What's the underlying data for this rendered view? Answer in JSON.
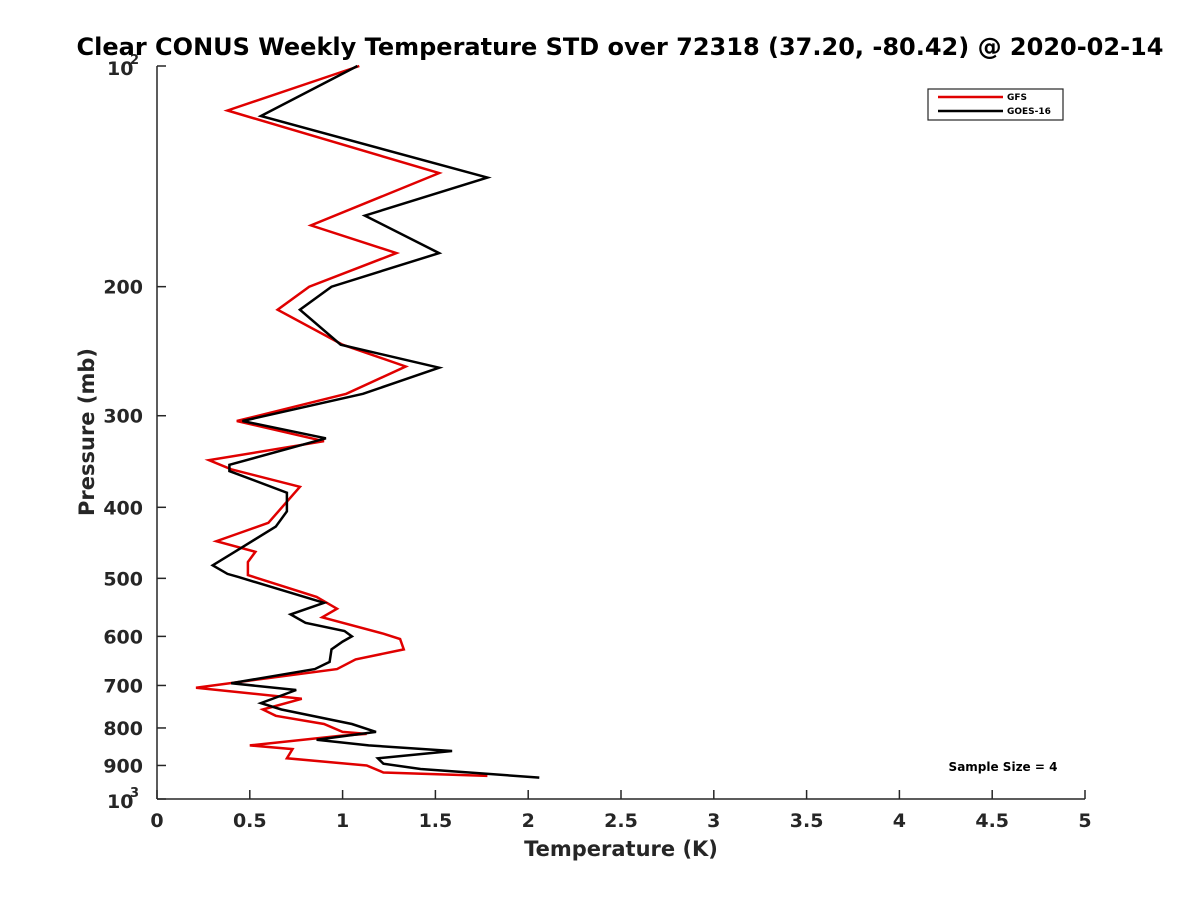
{
  "chart_data": {
    "type": "line",
    "title": "Clear CONUS Weekly Temperature STD over 72318 (37.20, -80.42) @ 2020-02-14",
    "xlabel": "Temperature (K)",
    "ylabel": "Pressure (mb)",
    "xlim": [
      0,
      5
    ],
    "ylim": [
      100,
      1000
    ],
    "y_scale": "log",
    "y_reversed": true,
    "grid": false,
    "legend_position": "top-right",
    "x_ticks": [
      "0",
      "0.5",
      "1",
      "1.5",
      "2",
      "2.5",
      "3",
      "3.5",
      "4",
      "4.5",
      "5"
    ],
    "y_ticks": [
      {
        "value": 100,
        "base": "10",
        "exp": "2"
      },
      {
        "value": 200,
        "label": "200"
      },
      {
        "value": 300,
        "label": "300"
      },
      {
        "value": 400,
        "label": "400"
      },
      {
        "value": 500,
        "label": "500"
      },
      {
        "value": 600,
        "label": "600"
      },
      {
        "value": 700,
        "label": "700"
      },
      {
        "value": 800,
        "label": "800"
      },
      {
        "value": 900,
        "label": "900"
      },
      {
        "value": 1000,
        "base": "10",
        "exp": "3"
      }
    ],
    "annotation": "Sample Size = 4",
    "series": [
      {
        "name": "GFS",
        "color": "#e00000",
        "points": [
          [
            1.09,
            100
          ],
          [
            0.38,
            115
          ],
          [
            1.52,
            140
          ],
          [
            0.83,
            165
          ],
          [
            1.29,
            180
          ],
          [
            0.82,
            200
          ],
          [
            0.65,
            215
          ],
          [
            1.0,
            240
          ],
          [
            1.34,
            257
          ],
          [
            1.02,
            280
          ],
          [
            0.43,
            305
          ],
          [
            0.9,
            325
          ],
          [
            0.28,
            345
          ],
          [
            0.4,
            355
          ],
          [
            0.77,
            375
          ],
          [
            0.6,
            420
          ],
          [
            0.43,
            435
          ],
          [
            0.32,
            445
          ],
          [
            0.53,
            460
          ],
          [
            0.49,
            475
          ],
          [
            0.49,
            495
          ],
          [
            0.86,
            530
          ],
          [
            0.97,
            550
          ],
          [
            0.89,
            565
          ],
          [
            1.22,
            595
          ],
          [
            1.31,
            605
          ],
          [
            1.33,
            625
          ],
          [
            1.07,
            645
          ],
          [
            0.97,
            665
          ],
          [
            0.21,
            705
          ],
          [
            0.78,
            730
          ],
          [
            0.57,
            755
          ],
          [
            0.64,
            770
          ],
          [
            0.9,
            790
          ],
          [
            1.0,
            810
          ],
          [
            1.13,
            815
          ],
          [
            0.99,
            820
          ],
          [
            0.5,
            845
          ],
          [
            0.73,
            855
          ],
          [
            0.7,
            880
          ],
          [
            1.13,
            900
          ],
          [
            1.22,
            920
          ],
          [
            1.78,
            930
          ]
        ]
      },
      {
        "name": "GOES-16",
        "color": "#000000",
        "points": [
          [
            1.08,
            100
          ],
          [
            0.56,
            117
          ],
          [
            1.78,
            142
          ],
          [
            1.12,
            160
          ],
          [
            1.52,
            180
          ],
          [
            0.94,
            200
          ],
          [
            0.77,
            215
          ],
          [
            0.99,
            240
          ],
          [
            1.52,
            258
          ],
          [
            1.11,
            280
          ],
          [
            0.46,
            305
          ],
          [
            0.91,
            322
          ],
          [
            0.39,
            350
          ],
          [
            0.39,
            357
          ],
          [
            0.7,
            382
          ],
          [
            0.7,
            405
          ],
          [
            0.64,
            425
          ],
          [
            0.45,
            455
          ],
          [
            0.3,
            480
          ],
          [
            0.38,
            493
          ],
          [
            0.44,
            498
          ],
          [
            0.9,
            540
          ],
          [
            0.72,
            560
          ],
          [
            0.8,
            575
          ],
          [
            1.01,
            590
          ],
          [
            1.05,
            600
          ],
          [
            1.0,
            610
          ],
          [
            0.94,
            625
          ],
          [
            0.93,
            650
          ],
          [
            0.85,
            665
          ],
          [
            0.4,
            695
          ],
          [
            0.75,
            710
          ],
          [
            0.56,
            740
          ],
          [
            0.67,
            755
          ],
          [
            1.05,
            790
          ],
          [
            1.18,
            810
          ],
          [
            0.86,
            830
          ],
          [
            1.14,
            845
          ],
          [
            1.59,
            860
          ],
          [
            1.19,
            880
          ],
          [
            1.22,
            895
          ],
          [
            1.42,
            910
          ],
          [
            2.06,
            935
          ]
        ]
      }
    ]
  }
}
